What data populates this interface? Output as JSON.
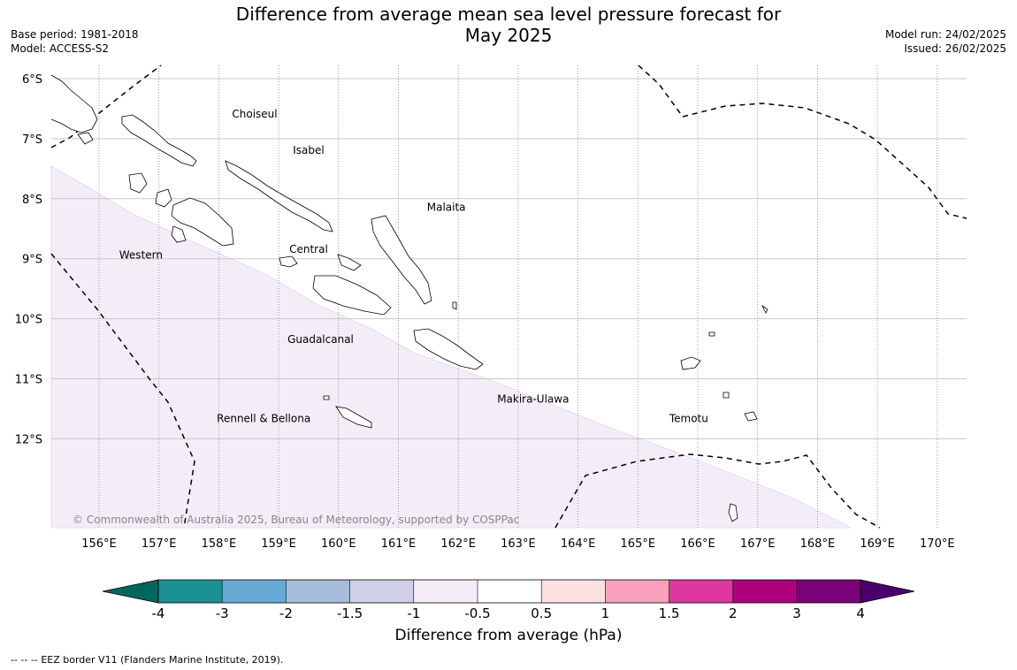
{
  "header": {
    "title_line1": "Difference from average mean sea level pressure forecast for",
    "title_line2": "May 2025",
    "base_period": "Base period: 1981-2018",
    "model": "Model: ACCESS-S2",
    "model_run": "Model run: 24/02/2025",
    "issued": "Issued: 26/02/2025"
  },
  "map": {
    "lat_labels": [
      "6°S",
      "7°S",
      "8°S",
      "9°S",
      "10°S",
      "11°S",
      "12°S"
    ],
    "lon_labels": [
      "156°E",
      "157°E",
      "158°E",
      "159°E",
      "160°E",
      "161°E",
      "162°E",
      "163°E",
      "164°E",
      "165°E",
      "166°E",
      "167°E",
      "168°E",
      "169°E",
      "170°E"
    ],
    "regions": [
      {
        "name": "Choiseul",
        "lon": 158.6,
        "lat": -6.65
      },
      {
        "name": "Isabel",
        "lon": 159.5,
        "lat": -7.25
      },
      {
        "name": "Malaita",
        "lon": 161.8,
        "lat": -8.2
      },
      {
        "name": "Central",
        "lon": 159.5,
        "lat": -8.9
      },
      {
        "name": "Western",
        "lon": 156.7,
        "lat": -9.0
      },
      {
        "name": "Guadalcanal",
        "lon": 159.7,
        "lat": -10.4
      },
      {
        "name": "Makira-Ulawa",
        "lon": 163.25,
        "lat": -11.4
      },
      {
        "name": "Rennell & Bellona",
        "lon": 158.75,
        "lat": -11.72
      },
      {
        "name": "Temotu",
        "lon": 165.85,
        "lat": -11.72
      }
    ],
    "shaded_band": "-1 to -0.5",
    "shaded_color": "#f4edf7",
    "copyright": "© Commonwealth of Australia 2025, Bureau of Meteorology, supported by COSPPac"
  },
  "colorbar": {
    "title": "Difference from average (hPa)",
    "tick_labels": [
      "-4",
      "-3",
      "-2",
      "-1.5",
      "-1",
      "-0.5",
      "0.5",
      "1",
      "1.5",
      "2",
      "3",
      "4"
    ],
    "colors": [
      "#1a9193",
      "#68aad3",
      "#a8bcdc",
      "#cfd0e5",
      "#f4edf7",
      "#ffffff",
      "#fde0e0",
      "#f8a0bc",
      "#de37a0",
      "#ad017d",
      "#7a0177"
    ],
    "under_color": "#01665e",
    "over_color": "#49006a"
  },
  "footer": {
    "legend_symbol": "--  --  --",
    "legend_text": "EEZ border V11 (Flanders Marine Institute, 2019)."
  }
}
